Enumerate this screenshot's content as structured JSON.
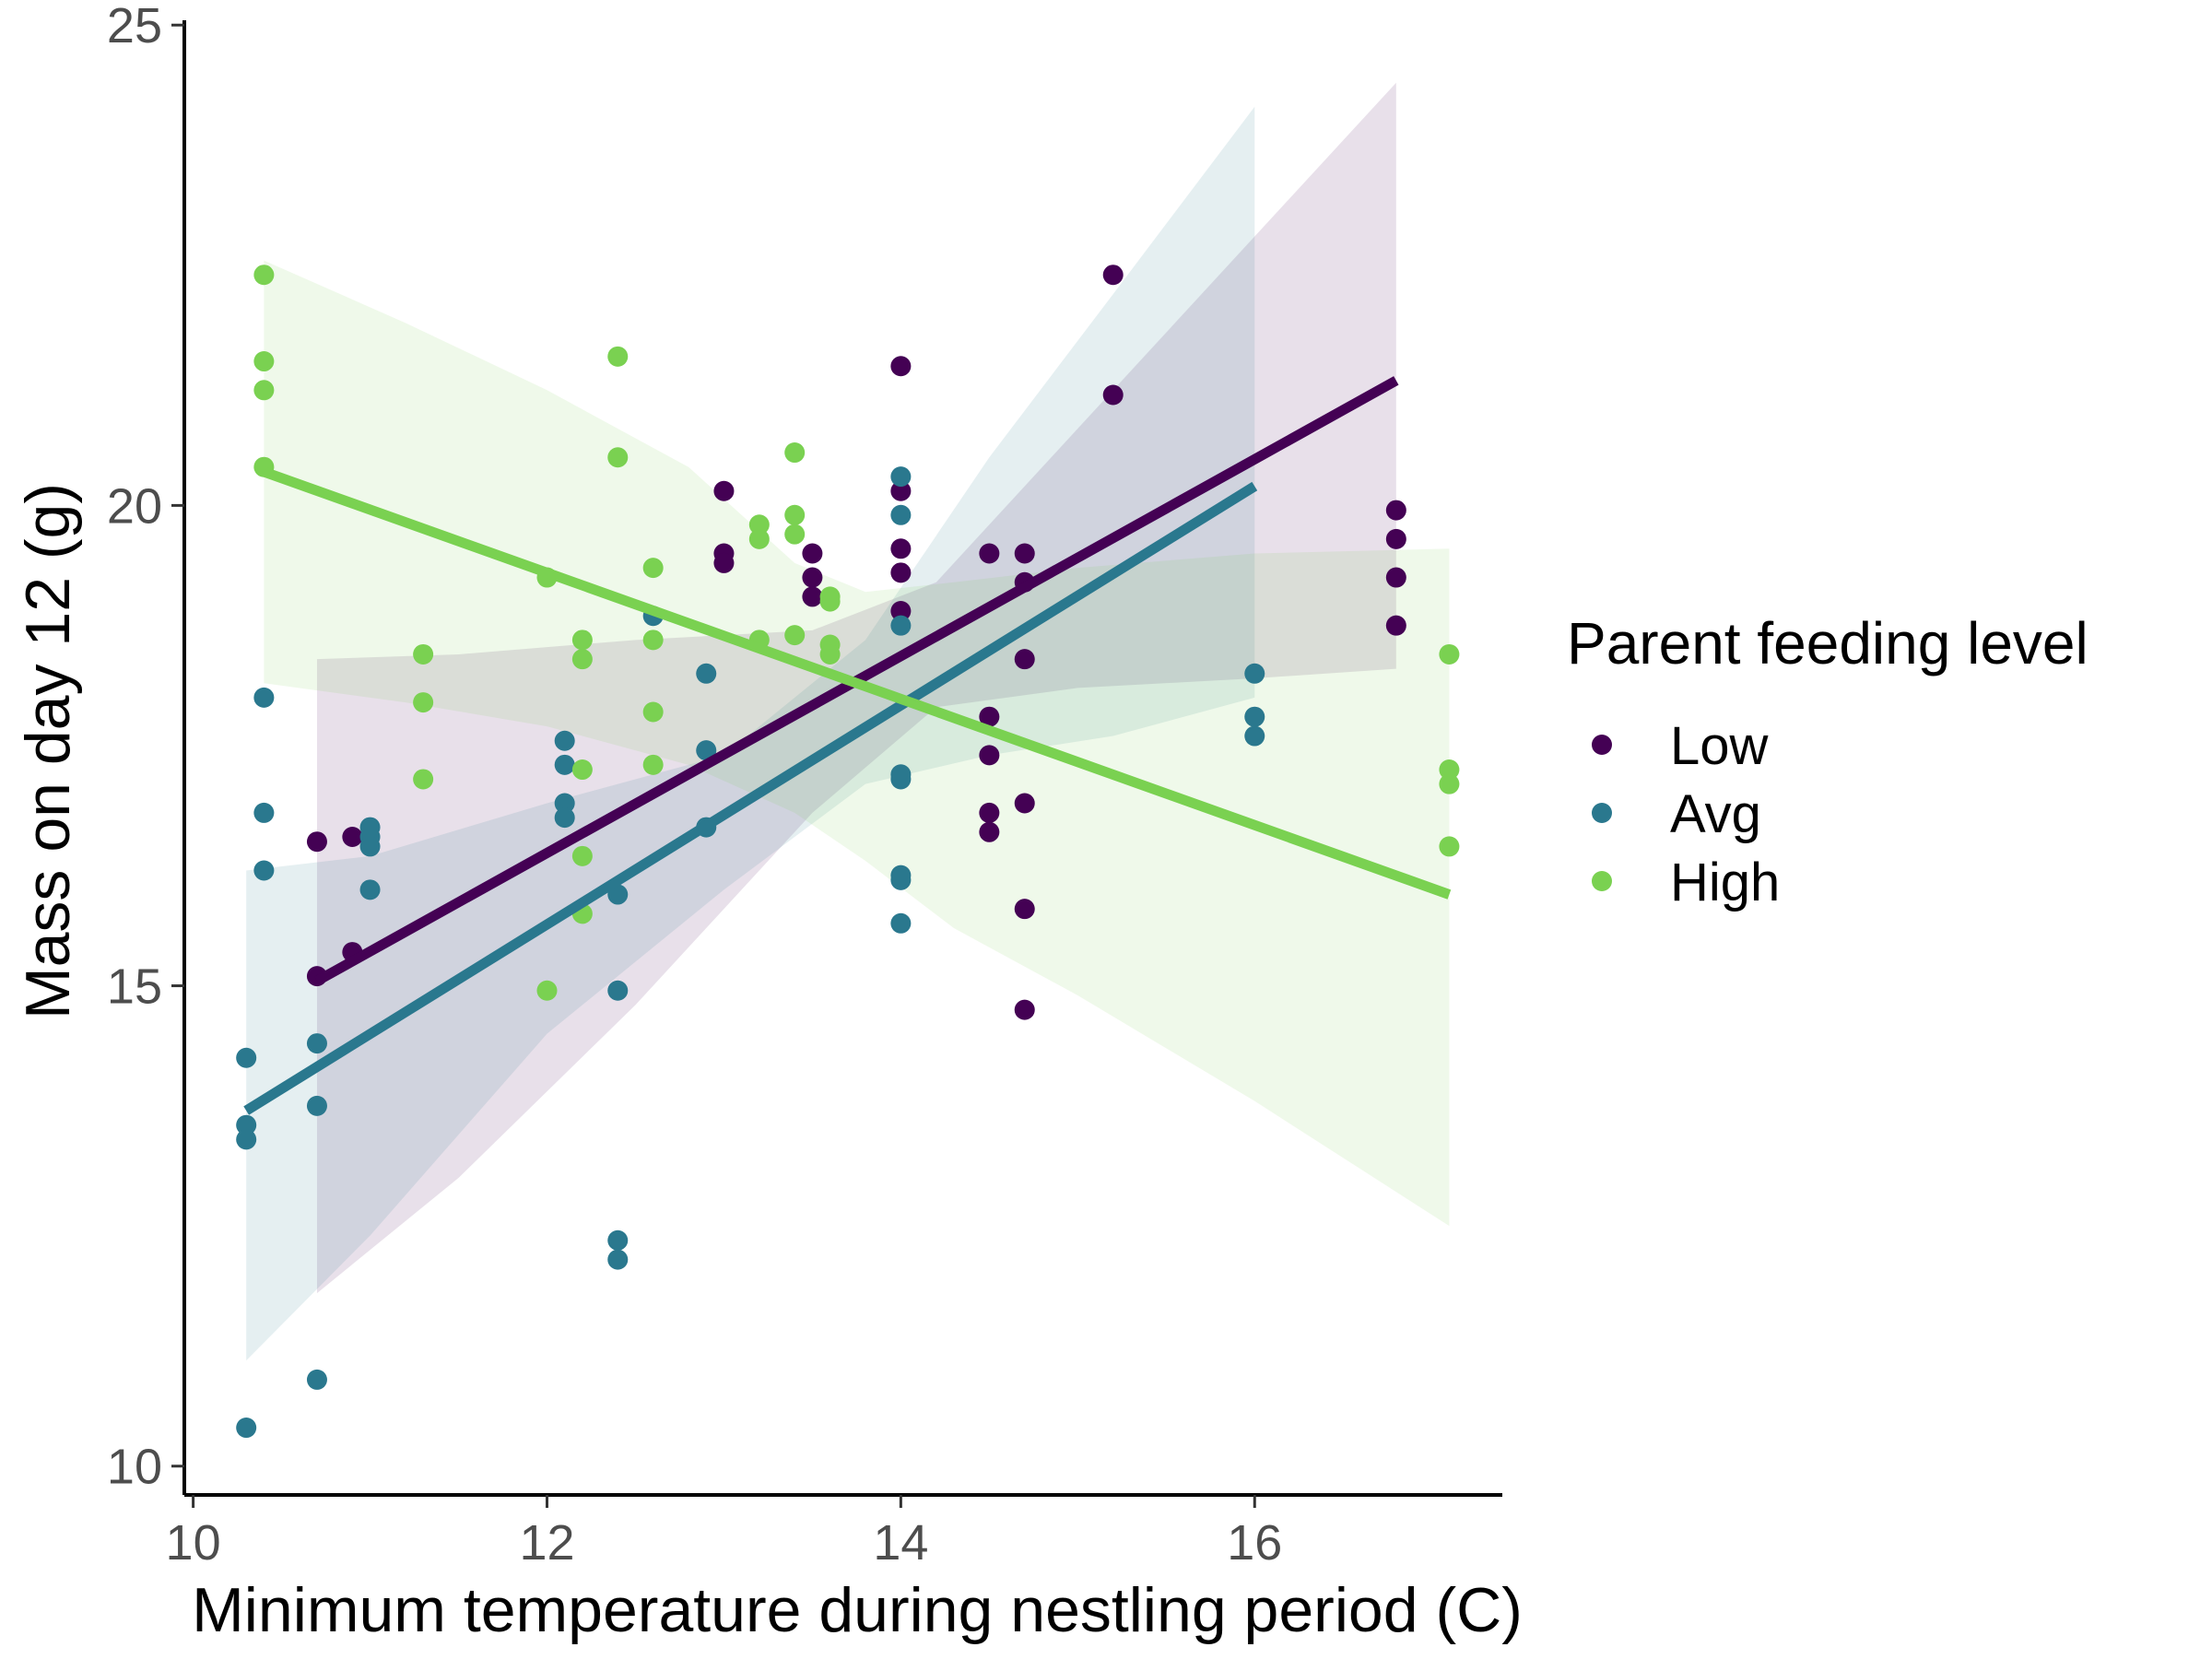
{
  "chart_data": {
    "type": "scatter",
    "title": "",
    "xlabel": "Minimum temperature during nestling period (C)",
    "ylabel": "Mass on day 12 (g)",
    "xlim": [
      9.95,
      17.4
    ],
    "ylim": [
      9.7,
      25.05
    ],
    "x_ticks": [
      10,
      12,
      14,
      16
    ],
    "y_ticks": [
      10,
      15,
      20,
      25
    ],
    "grid": false,
    "legend": {
      "title": "Parent feeding level",
      "position": "right"
    },
    "series": [
      {
        "name": "Low",
        "color": "#440154",
        "points": [
          [
            10.7,
            15.1
          ],
          [
            10.7,
            16.5
          ],
          [
            10.9,
            16.55
          ],
          [
            10.9,
            15.35
          ],
          [
            13.0,
            20.15
          ],
          [
            13.0,
            19.5
          ],
          [
            13.0,
            19.4
          ],
          [
            13.5,
            19.5
          ],
          [
            13.5,
            19.25
          ],
          [
            13.5,
            19.05
          ],
          [
            14.0,
            21.45
          ],
          [
            14.0,
            20.15
          ],
          [
            14.0,
            19.55
          ],
          [
            14.0,
            19.3
          ],
          [
            14.0,
            18.9
          ],
          [
            14.5,
            19.5
          ],
          [
            14.5,
            17.8
          ],
          [
            14.5,
            17.4
          ],
          [
            14.5,
            16.8
          ],
          [
            14.5,
            16.6
          ],
          [
            14.7,
            19.5
          ],
          [
            14.7,
            19.2
          ],
          [
            14.7,
            18.4
          ],
          [
            14.7,
            16.9
          ],
          [
            14.7,
            15.8
          ],
          [
            14.7,
            14.75
          ],
          [
            15.2,
            22.4
          ],
          [
            15.2,
            21.15
          ],
          [
            16.8,
            19.95
          ],
          [
            16.8,
            19.65
          ],
          [
            16.8,
            19.25
          ],
          [
            16.8,
            18.75
          ]
        ],
        "fit": {
          "x": [
            10.7,
            16.8
          ],
          "y": [
            15.05,
            21.3
          ]
        },
        "ci_band": {
          "x": [
            10.7,
            11.5,
            12.5,
            13.5,
            14.2,
            15.0,
            16.0,
            16.8
          ],
          "lower": [
            11.8,
            13.0,
            14.8,
            16.8,
            17.9,
            18.1,
            18.2,
            18.3
          ],
          "upper": [
            18.4,
            18.45,
            18.6,
            18.7,
            19.2,
            20.8,
            22.8,
            24.4
          ]
        }
      },
      {
        "name": "Avg",
        "color": "#2a788e",
        "points": [
          [
            10.3,
            14.25
          ],
          [
            10.3,
            13.55
          ],
          [
            10.3,
            13.4
          ],
          [
            10.3,
            10.4
          ],
          [
            10.4,
            18.0
          ],
          [
            10.4,
            16.8
          ],
          [
            10.4,
            16.2
          ],
          [
            10.7,
            14.4
          ],
          [
            10.7,
            13.75
          ],
          [
            10.7,
            10.9
          ],
          [
            11.0,
            16.65
          ],
          [
            11.0,
            16.55
          ],
          [
            11.0,
            16.45
          ],
          [
            11.0,
            16.0
          ],
          [
            12.1,
            17.55
          ],
          [
            12.1,
            17.3
          ],
          [
            12.1,
            16.9
          ],
          [
            12.1,
            16.75
          ],
          [
            12.4,
            15.95
          ],
          [
            12.4,
            14.95
          ],
          [
            12.4,
            12.35
          ],
          [
            12.4,
            12.15
          ],
          [
            12.6,
            18.85
          ],
          [
            12.9,
            18.25
          ],
          [
            12.9,
            17.45
          ],
          [
            12.9,
            16.65
          ],
          [
            14.0,
            20.3
          ],
          [
            14.0,
            19.9
          ],
          [
            14.0,
            18.75
          ],
          [
            14.0,
            17.2
          ],
          [
            14.0,
            17.15
          ],
          [
            14.0,
            16.15
          ],
          [
            14.0,
            16.1
          ],
          [
            14.0,
            15.65
          ],
          [
            16.0,
            18.25
          ],
          [
            16.0,
            17.8
          ],
          [
            16.0,
            17.6
          ]
        ],
        "fit": {
          "x": [
            10.3,
            16.0
          ],
          "y": [
            13.7,
            20.2
          ]
        },
        "ci_band": {
          "x": [
            10.3,
            11.0,
            12.0,
            13.0,
            13.8,
            14.5,
            15.2,
            16.0
          ],
          "lower": [
            11.1,
            12.4,
            14.5,
            16.0,
            17.1,
            17.4,
            17.6,
            18.0
          ],
          "upper": [
            16.2,
            16.35,
            16.9,
            17.4,
            18.6,
            20.5,
            22.2,
            24.15
          ]
        }
      },
      {
        "name": "High",
        "color": "#7ad151",
        "points": [
          [
            10.4,
            22.4
          ],
          [
            10.4,
            21.5
          ],
          [
            10.4,
            21.2
          ],
          [
            10.4,
            20.4
          ],
          [
            11.3,
            18.45
          ],
          [
            11.3,
            17.95
          ],
          [
            11.3,
            17.15
          ],
          [
            12.0,
            19.25
          ],
          [
            12.0,
            14.95
          ],
          [
            12.2,
            18.6
          ],
          [
            12.2,
            18.4
          ],
          [
            12.2,
            17.25
          ],
          [
            12.2,
            16.35
          ],
          [
            12.2,
            15.75
          ],
          [
            12.4,
            21.55
          ],
          [
            12.4,
            20.5
          ],
          [
            12.6,
            19.35
          ],
          [
            12.6,
            18.6
          ],
          [
            12.6,
            17.85
          ],
          [
            12.6,
            17.3
          ],
          [
            13.2,
            19.8
          ],
          [
            13.2,
            19.65
          ],
          [
            13.2,
            18.6
          ],
          [
            13.4,
            20.55
          ],
          [
            13.4,
            19.9
          ],
          [
            13.4,
            19.7
          ],
          [
            13.4,
            18.65
          ],
          [
            13.6,
            19.05
          ],
          [
            13.6,
            19.0
          ],
          [
            13.6,
            18.55
          ],
          [
            13.6,
            18.45
          ],
          [
            17.1,
            18.45
          ],
          [
            17.1,
            17.25
          ],
          [
            17.1,
            17.1
          ],
          [
            17.1,
            16.45
          ]
        ],
        "fit": {
          "x": [
            10.4,
            17.1
          ],
          "y": [
            20.35,
            15.95
          ]
        },
        "ci_band": {
          "x": [
            10.4,
            11.2,
            12.0,
            12.8,
            13.4,
            13.8,
            14.3,
            15.0,
            16.0,
            17.1
          ],
          "lower": [
            18.15,
            17.95,
            17.7,
            17.3,
            16.8,
            16.3,
            15.6,
            14.9,
            13.8,
            12.5
          ],
          "upper": [
            22.55,
            21.9,
            21.2,
            20.4,
            19.4,
            19.1,
            19.2,
            19.35,
            19.5,
            19.55
          ]
        }
      }
    ]
  }
}
